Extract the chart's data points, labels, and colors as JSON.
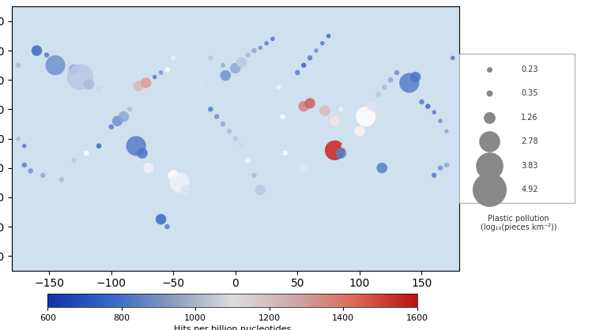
{
  "title": "",
  "colorbar_label": "Hits per billion nucleotides",
  "colorbar_min": 600,
  "colorbar_max": 1600,
  "colorbar_ticks": [
    600,
    800,
    1000,
    1200,
    1400,
    1600
  ],
  "legend_title": "Plastic pollution\n(log₁₀(pieces km⁻²))",
  "legend_sizes": [
    0.23,
    0.35,
    1.26,
    2.78,
    3.83,
    4.92
  ],
  "bg_color": "#d6e8f5",
  "land_color": "#e8e8e8",
  "ocean_color": "#cfe0ef",
  "points": [
    {
      "lon": -160,
      "lat": 60,
      "val": 650,
      "size": 1.26
    },
    {
      "lon": -152,
      "lat": 57,
      "val": 700,
      "size": 0.35
    },
    {
      "lon": -145,
      "lat": 50,
      "val": 750,
      "size": 2.78
    },
    {
      "lon": -130,
      "lat": 47,
      "val": 800,
      "size": 1.26
    },
    {
      "lon": -125,
      "lat": 42,
      "val": 900,
      "size": 3.83
    },
    {
      "lon": -118,
      "lat": 37,
      "val": 850,
      "size": 1.26
    },
    {
      "lon": -110,
      "lat": 34,
      "val": 950,
      "size": 0.35
    },
    {
      "lon": -78,
      "lat": 36,
      "val": 1350,
      "size": 1.26
    },
    {
      "lon": -72,
      "lat": 38,
      "val": 1400,
      "size": 1.26
    },
    {
      "lon": -65,
      "lat": 42,
      "val": 700,
      "size": 0.23
    },
    {
      "lon": -60,
      "lat": 45,
      "val": 750,
      "size": 0.23
    },
    {
      "lon": -55,
      "lat": 47,
      "val": 1100,
      "size": 0.35
    },
    {
      "lon": -50,
      "lat": 55,
      "val": 1050,
      "size": 0.35
    },
    {
      "lon": -28,
      "lat": 38,
      "val": 1000,
      "size": 0.35
    },
    {
      "lon": -20,
      "lat": 55,
      "val": 900,
      "size": 0.35
    },
    {
      "lon": -10,
      "lat": 50,
      "val": 800,
      "size": 0.23
    },
    {
      "lon": -8,
      "lat": 43,
      "val": 750,
      "size": 1.26
    },
    {
      "lon": 0,
      "lat": 48,
      "val": 800,
      "size": 1.26
    },
    {
      "lon": 5,
      "lat": 52,
      "val": 900,
      "size": 1.26
    },
    {
      "lon": 10,
      "lat": 57,
      "val": 850,
      "size": 0.35
    },
    {
      "lon": 15,
      "lat": 60,
      "val": 800,
      "size": 0.35
    },
    {
      "lon": 20,
      "lat": 62,
      "val": 750,
      "size": 0.23
    },
    {
      "lon": 25,
      "lat": 65,
      "val": 700,
      "size": 0.23
    },
    {
      "lon": 30,
      "lat": 68,
      "val": 680,
      "size": 0.23
    },
    {
      "lon": 35,
      "lat": 35,
      "val": 1050,
      "size": 0.35
    },
    {
      "lon": 38,
      "lat": 15,
      "val": 1100,
      "size": 0.35
    },
    {
      "lon": 55,
      "lat": 22,
      "val": 1450,
      "size": 1.26
    },
    {
      "lon": 60,
      "lat": 24,
      "val": 1500,
      "size": 1.26
    },
    {
      "lon": 72,
      "lat": 19,
      "val": 1350,
      "size": 1.26
    },
    {
      "lon": 80,
      "lat": 12,
      "val": 1200,
      "size": 1.26
    },
    {
      "lon": 85,
      "lat": 20,
      "val": 1050,
      "size": 0.35
    },
    {
      "lon": 100,
      "lat": 5,
      "val": 1150,
      "size": 1.26
    },
    {
      "lon": 105,
      "lat": 15,
      "val": 1100,
      "size": 2.78
    },
    {
      "lon": 110,
      "lat": 22,
      "val": 1000,
      "size": 1.26
    },
    {
      "lon": 115,
      "lat": 30,
      "val": 900,
      "size": 0.35
    },
    {
      "lon": 120,
      "lat": 35,
      "val": 850,
      "size": 0.35
    },
    {
      "lon": 125,
      "lat": 40,
      "val": 800,
      "size": 0.35
    },
    {
      "lon": 130,
      "lat": 45,
      "val": 750,
      "size": 0.35
    },
    {
      "lon": 140,
      "lat": 38,
      "val": 700,
      "size": 2.78
    },
    {
      "lon": 145,
      "lat": 42,
      "val": 680,
      "size": 1.26
    },
    {
      "lon": -80,
      "lat": -5,
      "val": 700,
      "size": 2.78
    },
    {
      "lon": -75,
      "lat": -10,
      "val": 680,
      "size": 1.26
    },
    {
      "lon": -70,
      "lat": -20,
      "val": 1050,
      "size": 1.26
    },
    {
      "lon": -50,
      "lat": -25,
      "val": 1100,
      "size": 1.26
    },
    {
      "lon": -45,
      "lat": -30,
      "val": 1050,
      "size": 2.78
    },
    {
      "lon": -40,
      "lat": -35,
      "val": 1000,
      "size": 1.26
    },
    {
      "lon": -60,
      "lat": -55,
      "val": 650,
      "size": 1.26
    },
    {
      "lon": -55,
      "lat": -60,
      "val": 700,
      "size": 0.35
    },
    {
      "lon": 20,
      "lat": -35,
      "val": 900,
      "size": 1.26
    },
    {
      "lon": 15,
      "lat": -25,
      "val": 850,
      "size": 0.35
    },
    {
      "lon": 10,
      "lat": -15,
      "val": 1050,
      "size": 0.35
    },
    {
      "lon": 40,
      "lat": -10,
      "val": 1100,
      "size": 0.35
    },
    {
      "lon": 55,
      "lat": -20,
      "val": 1000,
      "size": 1.26
    },
    {
      "lon": 80,
      "lat": -8,
      "val": 1600,
      "size": 2.78
    },
    {
      "lon": 85,
      "lat": -10,
      "val": 700,
      "size": 1.26
    },
    {
      "lon": 87,
      "lat": -5,
      "val": 1000,
      "size": 0.35
    },
    {
      "lon": 118,
      "lat": -20,
      "val": 700,
      "size": 1.26
    },
    {
      "lon": -170,
      "lat": -18,
      "val": 700,
      "size": 0.35
    },
    {
      "lon": -165,
      "lat": -22,
      "val": 750,
      "size": 0.35
    },
    {
      "lon": -155,
      "lat": -25,
      "val": 800,
      "size": 0.35
    },
    {
      "lon": -140,
      "lat": -28,
      "val": 850,
      "size": 0.35
    },
    {
      "lon": -130,
      "lat": -15,
      "val": 900,
      "size": 0.35
    },
    {
      "lon": -120,
      "lat": -10,
      "val": 1100,
      "size": 0.35
    },
    {
      "lon": -110,
      "lat": -5,
      "val": 650,
      "size": 0.35
    },
    {
      "lon": -100,
      "lat": 8,
      "val": 700,
      "size": 0.35
    },
    {
      "lon": -95,
      "lat": 12,
      "val": 750,
      "size": 1.26
    },
    {
      "lon": -90,
      "lat": 15,
      "val": 800,
      "size": 1.26
    },
    {
      "lon": -85,
      "lat": 20,
      "val": 850,
      "size": 0.35
    },
    {
      "lon": 160,
      "lat": -25,
      "val": 700,
      "size": 0.35
    },
    {
      "lon": 165,
      "lat": -20,
      "val": 750,
      "size": 0.35
    },
    {
      "lon": 170,
      "lat": -18,
      "val": 800,
      "size": 0.35
    },
    {
      "lon": -175,
      "lat": 50,
      "val": 850,
      "size": 0.35
    },
    {
      "lon": 150,
      "lat": 25,
      "val": 700,
      "size": 0.35
    },
    {
      "lon": 155,
      "lat": 22,
      "val": 650,
      "size": 0.35
    },
    {
      "lon": 160,
      "lat": 18,
      "val": 700,
      "size": 0.23
    },
    {
      "lon": 165,
      "lat": 12,
      "val": 750,
      "size": 0.23
    },
    {
      "lon": 170,
      "lat": 5,
      "val": 800,
      "size": 0.23
    },
    {
      "lon": -175,
      "lat": 0,
      "val": 850,
      "size": 0.23
    },
    {
      "lon": -170,
      "lat": -5,
      "val": 700,
      "size": 0.23
    },
    {
      "lon": 175,
      "lat": 55,
      "val": 680,
      "size": 0.23
    },
    {
      "lon": 50,
      "lat": 45,
      "val": 700,
      "size": 0.35
    },
    {
      "lon": 55,
      "lat": 50,
      "val": 650,
      "size": 0.35
    },
    {
      "lon": 60,
      "lat": 55,
      "val": 700,
      "size": 0.35
    },
    {
      "lon": 65,
      "lat": 60,
      "val": 750,
      "size": 0.23
    },
    {
      "lon": 70,
      "lat": 65,
      "val": 700,
      "size": 0.23
    },
    {
      "lon": 75,
      "lat": 70,
      "val": 650,
      "size": 0.23
    },
    {
      "lon": -20,
      "lat": 20,
      "val": 700,
      "size": 0.35
    },
    {
      "lon": -15,
      "lat": 15,
      "val": 750,
      "size": 0.35
    },
    {
      "lon": -10,
      "lat": 10,
      "val": 800,
      "size": 0.35
    },
    {
      "lon": -5,
      "lat": 5,
      "val": 850,
      "size": 0.35
    },
    {
      "lon": 0,
      "lat": 0,
      "val": 900,
      "size": 0.35
    },
    {
      "lon": 5,
      "lat": -5,
      "val": 950,
      "size": 0.35
    }
  ]
}
